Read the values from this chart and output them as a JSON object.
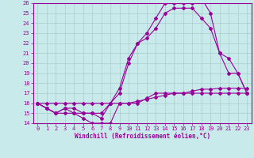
{
  "xlabel": "Windchill (Refroidissement éolien,°C)",
  "ylabel": "",
  "bg_color": "#c8eaea",
  "line_color": "#990099",
  "grid_color": "#aacccc",
  "xlim": [
    -0.5,
    23.5
  ],
  "ylim": [
    14,
    26
  ],
  "xticks": [
    0,
    1,
    2,
    3,
    4,
    5,
    6,
    7,
    8,
    9,
    10,
    11,
    12,
    13,
    14,
    15,
    16,
    17,
    18,
    19,
    20,
    21,
    22,
    23
  ],
  "yticks": [
    14,
    15,
    16,
    17,
    18,
    19,
    20,
    21,
    22,
    23,
    24,
    25,
    26
  ],
  "line1_x": [
    0,
    1,
    2,
    3,
    4,
    5,
    6,
    7,
    8,
    9,
    10,
    11,
    12,
    13,
    14,
    15,
    16,
    17,
    18,
    19,
    20,
    21,
    22,
    23
  ],
  "line1_y": [
    16,
    15.5,
    15,
    15,
    15,
    14.5,
    14,
    14,
    14,
    16,
    16,
    16,
    16.5,
    17,
    17,
    17,
    17,
    17,
    17,
    17,
    17,
    17,
    17,
    17
  ],
  "line2_x": [
    0,
    1,
    2,
    3,
    4,
    5,
    6,
    7,
    8,
    9,
    10,
    11,
    12,
    13,
    14,
    15,
    16,
    17,
    18,
    19,
    20,
    21,
    22,
    23
  ],
  "line2_y": [
    16,
    15.5,
    15,
    15.5,
    15,
    15,
    15,
    14.5,
    16,
    17.5,
    20.5,
    22,
    23,
    24.5,
    26,
    26,
    26,
    26,
    26.5,
    25,
    21,
    19,
    19,
    17
  ],
  "line3_x": [
    0,
    1,
    2,
    3,
    4,
    5,
    6,
    7,
    8,
    9,
    10,
    11,
    12,
    13,
    14,
    15,
    16,
    17,
    18,
    19,
    20,
    21,
    22,
    23
  ],
  "line3_y": [
    16,
    15.5,
    15,
    15.5,
    15.5,
    15,
    15,
    15,
    16,
    17,
    20,
    22,
    22.5,
    23.5,
    25,
    25.5,
    25.5,
    25.5,
    24.5,
    23.5,
    21,
    20.5,
    19,
    17
  ],
  "line4_x": [
    0,
    1,
    2,
    3,
    4,
    5,
    6,
    7,
    8,
    9,
    10,
    11,
    12,
    13,
    14,
    15,
    16,
    17,
    18,
    19,
    20,
    21,
    22,
    23
  ],
  "line4_y": [
    16,
    16,
    16,
    16,
    16,
    16,
    16,
    16,
    16,
    16,
    16,
    16.2,
    16.4,
    16.6,
    16.8,
    17,
    17,
    17.2,
    17.4,
    17.4,
    17.5,
    17.5,
    17.5,
    17.5
  ]
}
